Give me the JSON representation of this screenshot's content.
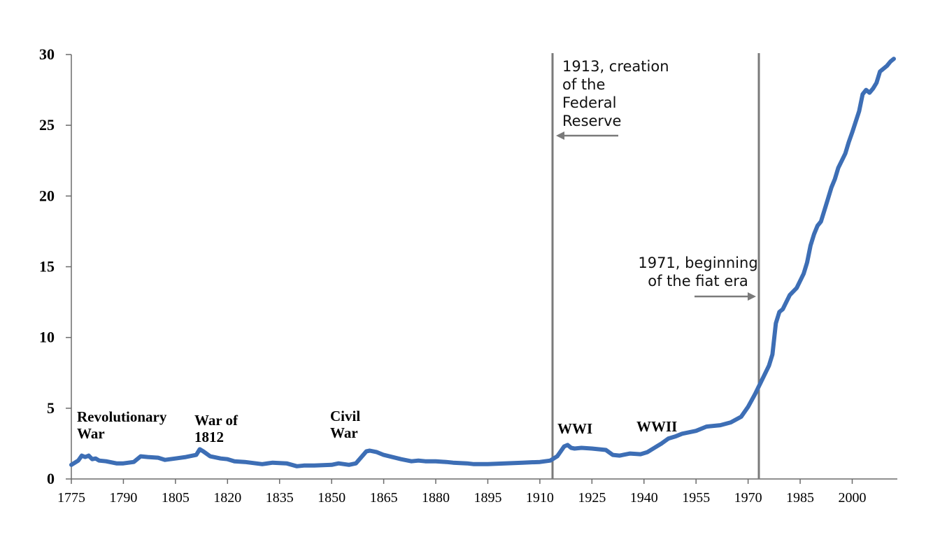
{
  "chart_data": {
    "type": "line",
    "title": "",
    "xlabel": "",
    "ylabel": "",
    "xlim": [
      1775,
      2013
    ],
    "ylim": [
      0,
      30
    ],
    "y_ticks": [
      "0",
      "5",
      "10",
      "15",
      "20",
      "25",
      "30"
    ],
    "x_ticks": [
      "1775",
      "1790",
      "1805",
      "1820",
      "1835",
      "1850",
      "1865",
      "1880",
      "1895",
      "1910",
      "1925",
      "1940",
      "1955",
      "1970",
      "1985",
      "2000"
    ],
    "grid": false,
    "series_color": "#3d6eb5",
    "series": [
      {
        "x": [
          1775,
          1777,
          1778,
          1779,
          1780,
          1781,
          1782,
          1783,
          1785,
          1788,
          1790,
          1793,
          1795,
          1797,
          1800,
          1802,
          1805,
          1808,
          1811,
          1812,
          1813,
          1815,
          1818,
          1820,
          1822,
          1825,
          1830,
          1833,
          1837,
          1840,
          1842,
          1845,
          1850,
          1852,
          1855,
          1857,
          1860,
          1861,
          1863,
          1865,
          1870,
          1873,
          1875,
          1877,
          1880,
          1883,
          1885,
          1889,
          1891,
          1895,
          1900,
          1905,
          1910,
          1913,
          1915,
          1917,
          1918,
          1919,
          1920,
          1922,
          1925,
          1929,
          1931,
          1933,
          1936,
          1939,
          1941,
          1943,
          1945,
          1947,
          1949,
          1951,
          1955,
          1958,
          1962,
          1965,
          1968,
          1970,
          1972,
          1975,
          1976,
          1977,
          1978,
          1979,
          1980,
          1981,
          1982,
          1984,
          1986,
          1987,
          1988,
          1989,
          1990,
          1991,
          1992,
          1993,
          1994,
          1995,
          1996,
          1997,
          1998,
          1999,
          2000,
          2002,
          2003,
          2004,
          2005,
          2006,
          2007,
          2008,
          2010,
          2011,
          2012
        ],
        "values": [
          1.0,
          1.3,
          1.65,
          1.55,
          1.65,
          1.4,
          1.45,
          1.3,
          1.25,
          1.1,
          1.1,
          1.2,
          1.6,
          1.55,
          1.5,
          1.35,
          1.45,
          1.55,
          1.7,
          2.1,
          1.95,
          1.6,
          1.45,
          1.4,
          1.25,
          1.2,
          1.05,
          1.15,
          1.1,
          0.9,
          0.95,
          0.95,
          1.0,
          1.1,
          1.0,
          1.1,
          1.95,
          2.0,
          1.9,
          1.7,
          1.4,
          1.25,
          1.3,
          1.25,
          1.25,
          1.2,
          1.15,
          1.1,
          1.05,
          1.05,
          1.1,
          1.15,
          1.2,
          1.3,
          1.6,
          2.3,
          2.4,
          2.2,
          2.15,
          2.2,
          2.15,
          2.05,
          1.7,
          1.65,
          1.8,
          1.75,
          1.9,
          2.2,
          2.5,
          2.85,
          3.0,
          3.2,
          3.4,
          3.7,
          3.8,
          4.0,
          4.4,
          5.1,
          6.0,
          7.5,
          8.0,
          8.8,
          11.0,
          11.8,
          12.0,
          12.5,
          13.0,
          13.5,
          14.5,
          15.3,
          16.5,
          17.3,
          17.9,
          18.2,
          19.0,
          19.8,
          20.6,
          21.2,
          22.0,
          22.5,
          23.0,
          23.8,
          24.5,
          26.0,
          27.2,
          27.5,
          27.3,
          27.6,
          28.0,
          28.8,
          29.2,
          29.5,
          29.7
        ]
      }
    ],
    "vertical_markers": [
      {
        "x": 1910,
        "label_lines": [
          "1913, creation",
          "of the",
          "Federal",
          "Reserve"
        ]
      },
      {
        "x": 1971,
        "label_lines": [
          "1971, beginning",
          "of the fiat era"
        ]
      }
    ],
    "annotations": [
      {
        "lines": [
          "Revolutionary",
          "War"
        ]
      },
      {
        "lines": [
          "War of",
          "1812"
        ]
      },
      {
        "lines": [
          "Civil",
          "War"
        ]
      },
      {
        "lines": [
          "WWI"
        ]
      },
      {
        "lines": [
          "WWII"
        ]
      }
    ]
  }
}
